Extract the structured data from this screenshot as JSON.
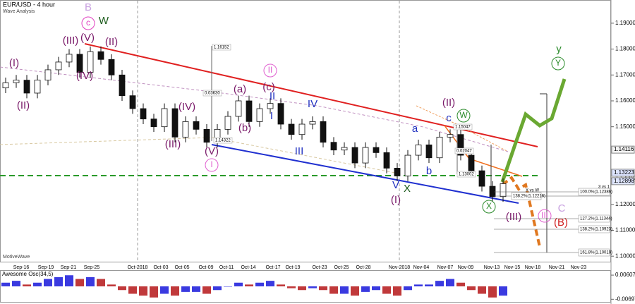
{
  "chart_data": [
    {
      "type": "candlestick",
      "title": "EUR/USD - 4 hour",
      "subtitle": "Wave Analysis",
      "footer": "MotiveWave",
      "x_labels": [
        "Sep-16",
        "Sep-19",
        "Sep-21",
        "Sep-25",
        "Oct-2018",
        "Oct-03",
        "Oct-05",
        "Oct-09",
        "Oct-11",
        "Oct-14",
        "Oct-17",
        "Oct-19",
        "Oct-23",
        "Oct-25",
        "Oct-28",
        "Nov-2018",
        "Nov-04",
        "Nov-07",
        "Nov-09",
        "Nov-13",
        "Nov-15",
        "Nov-18",
        "Nov-21",
        "Nov-23"
      ],
      "open": [
        1.165,
        1.167,
        1.168,
        1.163,
        1.168,
        1.172,
        1.175,
        1.178,
        1.171,
        1.179,
        1.176,
        1.17,
        1.162,
        1.157,
        1.153,
        1.15,
        1.157,
        1.146,
        1.152,
        1.149,
        1.144,
        1.149,
        1.154,
        1.16,
        1.152,
        1.157,
        1.159,
        1.151,
        1.147,
        1.151,
        1.152,
        1.144,
        1.141,
        1.142,
        1.136,
        1.142,
        1.14,
        1.134,
        1.131,
        1.139,
        1.143,
        1.138,
        1.146,
        1.147,
        1.139,
        1.133,
        1.127,
        1.123
      ],
      "high": [
        1.169,
        1.17,
        1.17,
        1.17,
        1.174,
        1.177,
        1.18,
        1.18,
        1.181,
        1.181,
        1.178,
        1.172,
        1.164,
        1.159,
        1.155,
        1.159,
        1.159,
        1.154,
        1.154,
        1.151,
        1.151,
        1.156,
        1.162,
        1.162,
        1.159,
        1.161,
        1.161,
        1.153,
        1.153,
        1.154,
        1.154,
        1.146,
        1.144,
        1.144,
        1.144,
        1.144,
        1.142,
        1.136,
        1.141,
        1.145,
        1.145,
        1.148,
        1.149,
        1.149,
        1.141,
        1.135,
        1.129,
        1.13
      ],
      "low": [
        1.163,
        1.165,
        1.161,
        1.161,
        1.166,
        1.17,
        1.173,
        1.169,
        1.169,
        1.174,
        1.168,
        1.16,
        1.155,
        1.151,
        1.148,
        1.148,
        1.144,
        1.144,
        1.147,
        1.142,
        1.142,
        1.147,
        1.152,
        1.15,
        1.15,
        1.155,
        1.149,
        1.145,
        1.145,
        1.149,
        1.142,
        1.139,
        1.139,
        1.134,
        1.134,
        1.138,
        1.132,
        1.129,
        1.129,
        1.137,
        1.136,
        1.136,
        1.144,
        1.137,
        1.131,
        1.125,
        1.121,
        1.121
      ],
      "close": [
        1.167,
        1.168,
        1.163,
        1.168,
        1.172,
        1.175,
        1.178,
        1.171,
        1.179,
        1.176,
        1.17,
        1.162,
        1.157,
        1.153,
        1.15,
        1.157,
        1.146,
        1.152,
        1.149,
        1.144,
        1.149,
        1.154,
        1.16,
        1.152,
        1.157,
        1.159,
        1.151,
        1.147,
        1.151,
        1.152,
        1.144,
        1.141,
        1.142,
        1.136,
        1.142,
        1.14,
        1.134,
        1.131,
        1.139,
        1.143,
        1.138,
        1.146,
        1.147,
        1.139,
        1.133,
        1.127,
        1.123,
        1.128
      ],
      "ylim": [
        1.0976,
        1.1976
      ],
      "yticks": [
        {
          "value": 1.19,
          "label": "1.19000"
        },
        {
          "value": 1.18,
          "label": "1.18000"
        },
        {
          "value": 1.17,
          "label": "1.17000"
        },
        {
          "value": 1.16,
          "label": "1.16000"
        },
        {
          "value": 1.15,
          "label": "1.15000"
        },
        {
          "value": 1.13,
          "label": "1.13000"
        },
        {
          "value": 1.12,
          "label": "1.12000"
        },
        {
          "value": 1.11,
          "label": "1.11000"
        },
        {
          "value": 1.1,
          "label": "1.10000"
        }
      ],
      "price_markers": [
        {
          "value": 1.14116,
          "label": "1.14116"
        },
        {
          "value": 1.13223,
          "label": "1.13223"
        },
        {
          "value": 1.12898,
          "label": "1.12898"
        }
      ],
      "annotations": [
        "B",
        "c",
        "W",
        "(III)",
        "(V)",
        "(II)",
        "(I)",
        "(II)",
        "(IV)",
        "(III)",
        "(IV)",
        "(V)",
        "I",
        "II",
        "(a)",
        "(b)",
        "(c)",
        "II",
        "I",
        "IV",
        "III",
        "a",
        "b",
        "c",
        "(II)",
        "W",
        "V",
        "X",
        "(I)",
        "X",
        "(III)",
        "III",
        "C",
        "(B)",
        "y",
        "Y"
      ],
      "fib_labels": [
        "3 vs 1",
        "X vs W",
        "100.0%(1.12386)",
        "138.2%(1.12216)",
        "127.2%(1.11344)",
        "138.2%(1.10923)",
        "161.8%(1.10019)"
      ],
      "measurements": [
        "1.16152",
        "0.03630",
        "1.14322",
        "1.15047",
        "0.02047",
        "1.13002"
      ]
    },
    {
      "type": "histogram_oscillator",
      "title": "Awesome Osc(34,5)",
      "values": [
        0.002,
        0.003,
        0.001,
        0.002,
        0.004,
        0.005,
        0.006,
        0.004,
        0.005,
        0.004,
        0.001,
        -0.002,
        -0.004,
        -0.005,
        -0.006,
        -0.004,
        -0.005,
        -0.003,
        -0.003,
        -0.004,
        -0.002,
        0.0,
        0.002,
        0.001,
        0.002,
        0.003,
        0.001,
        -0.001,
        -0.002,
        -0.001,
        -0.002,
        -0.004,
        -0.004,
        -0.005,
        -0.003,
        -0.002,
        -0.004,
        -0.005,
        -0.002,
        0.001,
        0.001,
        0.003,
        0.004,
        0.002,
        -0.002,
        -0.004,
        -0.006,
        -0.005
      ],
      "ylim": [
        -0.008,
        0.008
      ],
      "yticks": [
        -0.00697,
        0.00607
      ],
      "up_color": "#3a3ae0",
      "down_color": "#c0393b"
    }
  ]
}
